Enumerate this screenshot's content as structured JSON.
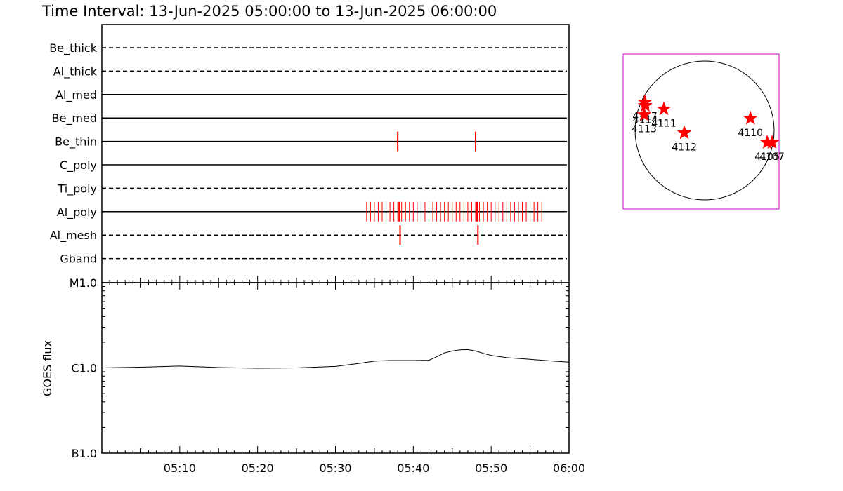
{
  "title": "Time Interval: 13-Jun-2025 05:00:00 to 13-Jun-2025 06:00:00",
  "chart_data": [
    {
      "type": "timeline",
      "x_range": [
        "05:00",
        "06:00"
      ],
      "channels": [
        {
          "name": "Be_thick",
          "style": "dashed",
          "events": []
        },
        {
          "name": "Al_thick",
          "style": "dashed",
          "events": []
        },
        {
          "name": "Al_med",
          "style": "solid",
          "events": []
        },
        {
          "name": "Be_med",
          "style": "solid",
          "events": []
        },
        {
          "name": "Be_thin",
          "style": "solid",
          "events": [
            38.0,
            48.0
          ],
          "tall": true
        },
        {
          "name": "C_poly",
          "style": "solid",
          "events": []
        },
        {
          "name": "Ti_poly",
          "style": "dashed",
          "events": []
        },
        {
          "name": "Al_poly",
          "style": "solid",
          "events_range": [
            34.0,
            56.5
          ],
          "events_step": 0.5,
          "emphasized": [
            38.2,
            48.2
          ]
        },
        {
          "name": "Al_mesh",
          "style": "dashed",
          "events": [
            38.3,
            48.3
          ],
          "tall": true
        },
        {
          "name": "Gband",
          "style": "dashed",
          "events": []
        }
      ],
      "event_color": "#ff0000"
    },
    {
      "type": "line",
      "ylabel": "GOES flux",
      "yscale": "log",
      "ylim": [
        1e-07,
        1e-05
      ],
      "ytick_labels": [
        "B1.0",
        "C1.0",
        "M1.0"
      ],
      "xlim": [
        0,
        60
      ],
      "xtick_labels": [
        "05:10",
        "05:20",
        "05:30",
        "05:40",
        "05:50",
        "06:00"
      ],
      "series": [
        {
          "x": [
            0,
            5,
            10,
            15,
            20,
            25,
            30,
            33,
            35,
            37,
            40,
            42,
            43,
            44,
            45,
            46,
            47,
            48,
            49,
            50,
            52,
            55,
            58,
            60
          ],
          "y": [
            1e-06,
            1.02e-06,
            1.05e-06,
            1.01e-06,
            9.9e-07,
            1e-06,
            1.04e-06,
            1.13e-06,
            1.2e-06,
            1.22e-06,
            1.22e-06,
            1.23e-06,
            1.35e-06,
            1.5e-06,
            1.58e-06,
            1.63e-06,
            1.64e-06,
            1.58e-06,
            1.48e-06,
            1.4e-06,
            1.32e-06,
            1.26e-06,
            1.2e-06,
            1.17e-06
          ]
        }
      ]
    }
  ],
  "solar_map": {
    "regions": [
      {
        "label": "4117",
        "lat": 24,
        "lon": -70
      },
      {
        "label": "4114",
        "lat": 21,
        "lon": -66
      },
      {
        "label": "4113",
        "lat": 13,
        "lon": -63
      },
      {
        "label": "4111",
        "lat": 18,
        "lon": -38
      },
      {
        "label": "4112",
        "lat": -2,
        "lon": -17
      },
      {
        "label": "4110",
        "lat": 10,
        "lon": 42
      },
      {
        "label": "4105",
        "lat": -10,
        "lon": 66
      },
      {
        "label": "4107",
        "lat": -10,
        "lon": 80
      }
    ]
  },
  "colors": {
    "frame": "#cc00cc",
    "events": "#ff0000",
    "axis": "#000000"
  }
}
